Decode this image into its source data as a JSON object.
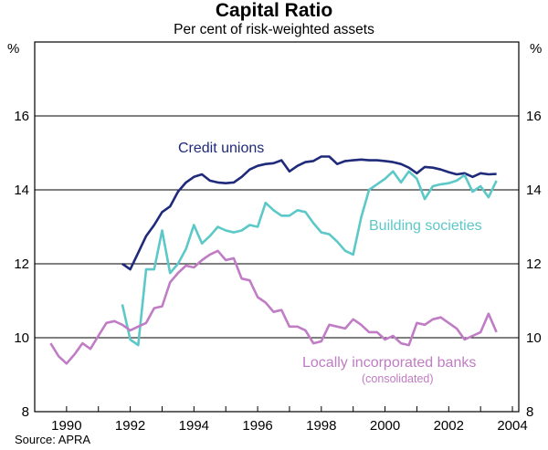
{
  "chart_data": {
    "type": "line",
    "title": "Capital Ratio",
    "subtitle": "Per cent of risk-weighted assets",
    "ylabel_left": "%",
    "ylabel_right": "%",
    "ylim": [
      8,
      18
    ],
    "yticks": [
      8,
      10,
      12,
      14,
      16
    ],
    "xlim": [
      1989,
      2004.2
    ],
    "xticks": [
      1990,
      1992,
      1994,
      1996,
      1998,
      2000,
      2002,
      2004
    ],
    "source": "Source: APRA",
    "series": [
      {
        "name": "Credit unions",
        "color": "#1f2a7a",
        "label": "Credit unions",
        "x": [
          1991.75,
          1992.0,
          1992.25,
          1992.5,
          1992.75,
          1993.0,
          1993.25,
          1993.5,
          1993.75,
          1994.0,
          1994.25,
          1994.5,
          1994.75,
          1995.0,
          1995.25,
          1995.5,
          1995.75,
          1996.0,
          1996.25,
          1996.5,
          1996.75,
          1997.0,
          1997.25,
          1997.5,
          1997.75,
          1998.0,
          1998.25,
          1998.5,
          1998.75,
          1999.0,
          1999.25,
          1999.5,
          1999.75,
          2000.0,
          2000.25,
          2000.5,
          2000.75,
          2001.0,
          2001.25,
          2001.5,
          2001.75,
          2002.0,
          2002.25,
          2002.5,
          2002.75,
          2003.0,
          2003.25,
          2003.5
        ],
        "values": [
          12.0,
          11.85,
          12.3,
          12.75,
          13.05,
          13.4,
          13.55,
          13.95,
          14.2,
          14.35,
          14.42,
          14.25,
          14.2,
          14.18,
          14.2,
          14.35,
          14.55,
          14.65,
          14.7,
          14.72,
          14.8,
          14.5,
          14.65,
          14.75,
          14.78,
          14.9,
          14.9,
          14.7,
          14.78,
          14.8,
          14.82,
          14.8,
          14.8,
          14.78,
          14.75,
          14.7,
          14.6,
          14.45,
          14.62,
          14.6,
          14.55,
          14.48,
          14.42,
          14.45,
          14.35,
          14.45,
          14.42,
          14.43
        ]
      },
      {
        "name": "Building societies",
        "color": "#5cc8c8",
        "label": "Building societies",
        "x": [
          1991.75,
          1992.0,
          1992.25,
          1992.5,
          1992.75,
          1993.0,
          1993.25,
          1993.5,
          1993.75,
          1994.0,
          1994.25,
          1994.5,
          1994.75,
          1995.0,
          1995.25,
          1995.5,
          1995.75,
          1996.0,
          1996.25,
          1996.5,
          1996.75,
          1997.0,
          1997.25,
          1997.5,
          1997.75,
          1998.0,
          1998.25,
          1998.5,
          1998.75,
          1999.0,
          1999.25,
          1999.5,
          1999.75,
          2000.0,
          2000.25,
          2000.5,
          2000.75,
          2001.0,
          2001.25,
          2001.5,
          2001.75,
          2002.0,
          2002.25,
          2002.5,
          2002.75,
          2003.0,
          2003.25,
          2003.5
        ],
        "values": [
          10.9,
          9.95,
          9.8,
          11.85,
          11.85,
          12.9,
          11.75,
          12.0,
          12.4,
          13.05,
          12.55,
          12.75,
          13.0,
          12.9,
          12.85,
          12.9,
          13.05,
          13.0,
          13.65,
          13.45,
          13.3,
          13.3,
          13.45,
          13.4,
          13.1,
          12.85,
          12.8,
          12.6,
          12.35,
          12.25,
          13.25,
          14.0,
          14.15,
          14.3,
          14.5,
          14.2,
          14.5,
          14.3,
          13.75,
          14.1,
          14.15,
          14.18,
          14.25,
          14.4,
          13.95,
          14.1,
          13.8,
          14.25
        ]
      },
      {
        "name": "Locally incorporated banks",
        "color": "#c07cc4",
        "label": "Locally incorporated banks",
        "sublabel": "(consolidated)",
        "x": [
          1989.5,
          1989.75,
          1990.0,
          1990.25,
          1990.5,
          1990.75,
          1991.0,
          1991.25,
          1991.5,
          1991.75,
          1992.0,
          1992.25,
          1992.5,
          1992.75,
          1993.0,
          1993.25,
          1993.5,
          1993.75,
          1994.0,
          1994.25,
          1994.5,
          1994.75,
          1995.0,
          1995.25,
          1995.5,
          1995.75,
          1996.0,
          1996.25,
          1996.5,
          1996.75,
          1997.0,
          1997.25,
          1997.5,
          1997.75,
          1998.0,
          1998.25,
          1998.5,
          1998.75,
          1999.0,
          1999.25,
          1999.5,
          1999.75,
          2000.0,
          2000.25,
          2000.5,
          2000.75,
          2001.0,
          2001.25,
          2001.5,
          2001.75,
          2002.0,
          2002.25,
          2002.5,
          2002.75,
          2003.0,
          2003.25,
          2003.5
        ],
        "values": [
          9.85,
          9.5,
          9.3,
          9.55,
          9.85,
          9.7,
          10.05,
          10.4,
          10.45,
          10.35,
          10.2,
          10.3,
          10.4,
          10.8,
          10.85,
          11.5,
          11.75,
          11.95,
          11.9,
          12.1,
          12.25,
          12.35,
          12.1,
          12.15,
          11.6,
          11.55,
          11.1,
          10.95,
          10.7,
          10.75,
          10.3,
          10.3,
          10.2,
          9.85,
          9.9,
          10.35,
          10.3,
          10.25,
          10.5,
          10.35,
          10.15,
          10.15,
          9.95,
          10.05,
          9.85,
          9.8,
          10.4,
          10.35,
          10.5,
          10.55,
          10.4,
          10.25,
          9.95,
          10.05,
          10.15,
          10.65,
          10.15
        ]
      }
    ]
  }
}
